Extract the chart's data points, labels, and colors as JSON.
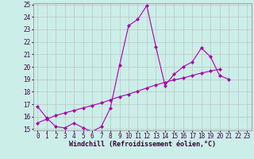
{
  "xlabel": "Windchill (Refroidissement éolien,°C)",
  "background_color": "#cceee8",
  "line_color": "#aa00aa",
  "grid_color": "#bbbbbb",
  "x_data": [
    0,
    1,
    2,
    3,
    4,
    5,
    6,
    7,
    8,
    9,
    10,
    11,
    12,
    13,
    14,
    15,
    16,
    17,
    18,
    19,
    20,
    21,
    22,
    23
  ],
  "y_main": [
    16.8,
    15.9,
    15.2,
    15.1,
    15.5,
    15.1,
    14.8,
    15.2,
    16.7,
    20.1,
    23.3,
    23.8,
    24.9,
    21.6,
    18.5,
    19.4,
    20.0,
    20.4,
    21.5,
    20.8,
    19.3,
    19.0,
    null,
    null
  ],
  "y_trend": [
    15.5,
    15.8,
    16.1,
    16.3,
    16.5,
    16.7,
    16.9,
    17.1,
    17.35,
    17.6,
    17.8,
    18.05,
    18.3,
    18.55,
    18.75,
    18.95,
    19.1,
    19.3,
    19.5,
    19.65,
    19.8,
    null,
    null,
    null
  ],
  "ylim": [
    15,
    25
  ],
  "xlim": [
    -0.5,
    23.5
  ],
  "yticks": [
    15,
    16,
    17,
    18,
    19,
    20,
    21,
    22,
    23,
    24,
    25
  ],
  "xticks": [
    0,
    1,
    2,
    3,
    4,
    5,
    6,
    7,
    8,
    9,
    10,
    11,
    12,
    13,
    14,
    15,
    16,
    17,
    18,
    19,
    20,
    21,
    22,
    23
  ],
  "xlabel_fontsize": 6,
  "tick_fontsize": 5.5,
  "line_width": 0.8,
  "marker": "D",
  "marker_size": 2.0
}
